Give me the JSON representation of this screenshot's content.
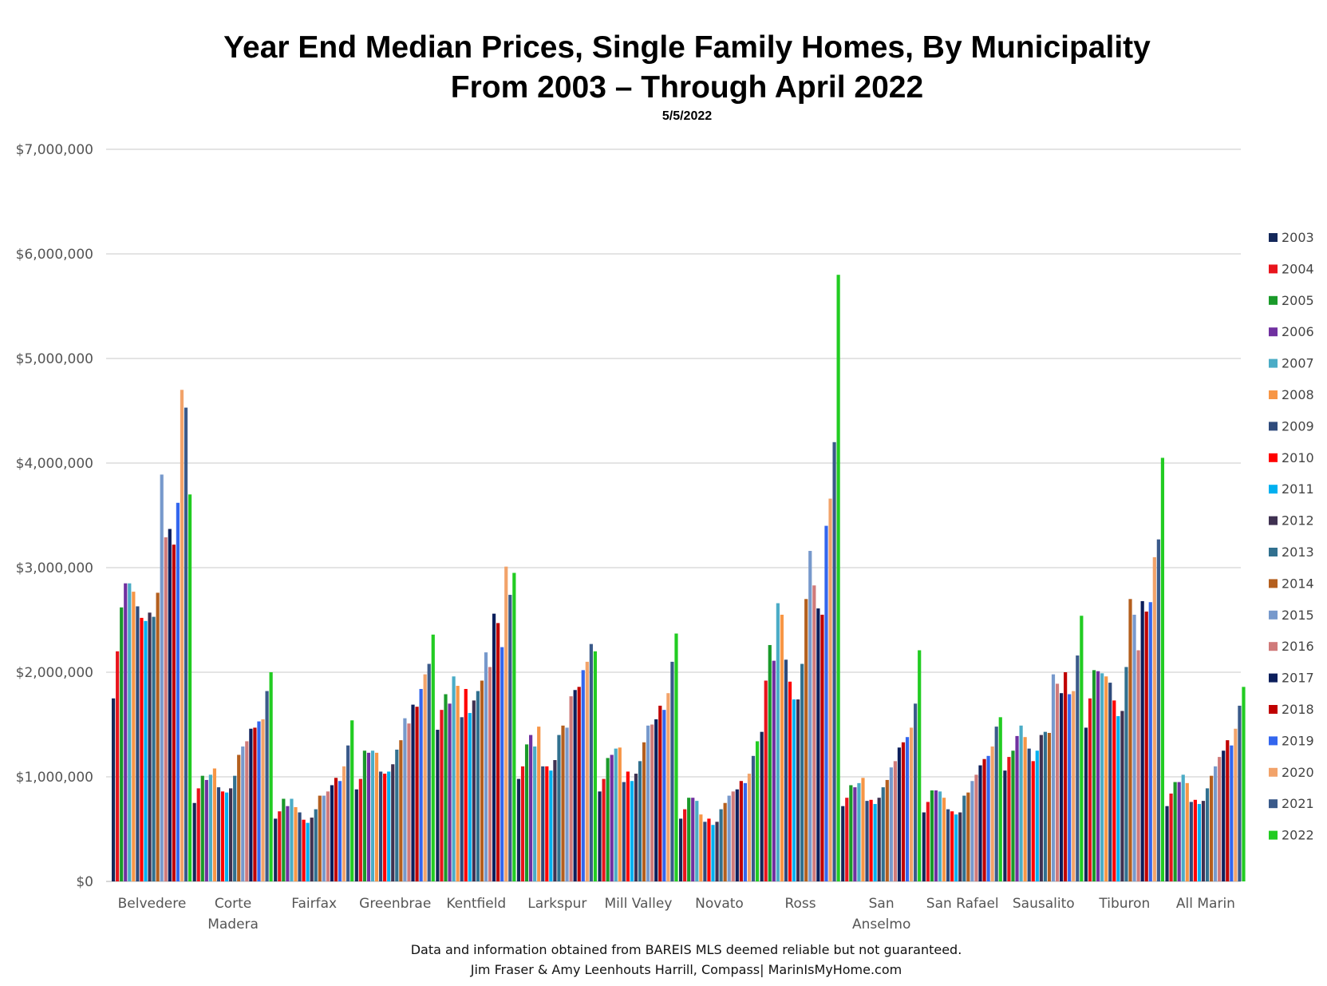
{
  "chart_data": {
    "type": "bar",
    "title": "Year End Median Prices, Single Family Homes, By Municipality",
    "title_line2": "From 2003 – Through April 2022",
    "subtitle": "5/5/2022",
    "ylim": [
      0,
      7000000
    ],
    "yticks": [
      "$0",
      "$1,000,000",
      "$2,000,000",
      "$3,000,000",
      "$4,000,000",
      "$5,000,000",
      "$6,000,000",
      "$7,000,000"
    ],
    "grid": true,
    "legend_position": "right",
    "categories": [
      [
        "Belvedere"
      ],
      [
        "Corte",
        "Madera"
      ],
      [
        "Fairfax"
      ],
      [
        "Greenbrae"
      ],
      [
        "Kentfield"
      ],
      [
        "Larkspur"
      ],
      [
        "Mill Valley"
      ],
      [
        "Novato"
      ],
      [
        "Ross"
      ],
      [
        "San",
        "Anselmo"
      ],
      [
        "San Rafael"
      ],
      [
        "Sausalito"
      ],
      [
        "Tiburon"
      ],
      [
        "All Marin"
      ]
    ],
    "series": [
      {
        "name": "2003",
        "color": "#14285a",
        "values": [
          1750000,
          750000,
          600000,
          880000,
          1450000,
          980000,
          860000,
          600000,
          1430000,
          720000,
          660000,
          1060000,
          1470000,
          720000
        ]
      },
      {
        "name": "2004",
        "color": "#e8141c",
        "values": [
          2200000,
          890000,
          670000,
          980000,
          1640000,
          1100000,
          980000,
          690000,
          1920000,
          800000,
          760000,
          1190000,
          1750000,
          840000
        ]
      },
      {
        "name": "2005",
        "color": "#1a9a2a",
        "values": [
          2620000,
          1010000,
          790000,
          1250000,
          1790000,
          1310000,
          1180000,
          800000,
          2260000,
          920000,
          870000,
          1250000,
          2020000,
          950000
        ]
      },
      {
        "name": "2006",
        "color": "#7030a0",
        "values": [
          2850000,
          970000,
          720000,
          1230000,
          1700000,
          1400000,
          1210000,
          800000,
          2110000,
          900000,
          870000,
          1390000,
          2010000,
          950000
        ]
      },
      {
        "name": "2007",
        "color": "#4bacc6",
        "values": [
          2850000,
          1020000,
          790000,
          1250000,
          1960000,
          1290000,
          1270000,
          770000,
          2660000,
          940000,
          860000,
          1490000,
          1990000,
          1020000
        ]
      },
      {
        "name": "2008",
        "color": "#f79646",
        "values": [
          2770000,
          1080000,
          710000,
          1230000,
          1870000,
          1480000,
          1280000,
          640000,
          2550000,
          990000,
          800000,
          1380000,
          1960000,
          940000
        ]
      },
      {
        "name": "2009",
        "color": "#2f4b7c",
        "values": [
          2630000,
          900000,
          660000,
          1050000,
          1570000,
          1100000,
          950000,
          570000,
          2120000,
          770000,
          690000,
          1270000,
          1900000,
          760000
        ]
      },
      {
        "name": "2010",
        "color": "#ff0000",
        "values": [
          2520000,
          860000,
          590000,
          1030000,
          1840000,
          1100000,
          1050000,
          600000,
          1910000,
          780000,
          670000,
          1150000,
          1730000,
          780000
        ]
      },
      {
        "name": "2011",
        "color": "#00b0f0",
        "values": [
          2490000,
          850000,
          560000,
          1050000,
          1610000,
          1060000,
          960000,
          540000,
          1740000,
          740000,
          640000,
          1250000,
          1580000,
          740000
        ]
      },
      {
        "name": "2012",
        "color": "#3f3151",
        "values": [
          2570000,
          890000,
          610000,
          1120000,
          1730000,
          1160000,
          1030000,
          570000,
          1740000,
          800000,
          660000,
          1400000,
          1630000,
          770000
        ]
      },
      {
        "name": "2013",
        "color": "#31708f",
        "values": [
          2530000,
          1010000,
          690000,
          1260000,
          1820000,
          1400000,
          1150000,
          690000,
          2080000,
          900000,
          820000,
          1430000,
          2050000,
          890000
        ]
      },
      {
        "name": "2014",
        "color": "#b45f1e",
        "values": [
          2760000,
          1210000,
          820000,
          1350000,
          1920000,
          1490000,
          1330000,
          750000,
          2700000,
          970000,
          850000,
          1420000,
          2700000,
          1010000
        ]
      },
      {
        "name": "2015",
        "color": "#7799cc",
        "values": [
          3890000,
          1290000,
          820000,
          1560000,
          2190000,
          1470000,
          1490000,
          820000,
          3160000,
          1090000,
          960000,
          1980000,
          2550000,
          1100000
        ]
      },
      {
        "name": "2016",
        "color": "#d07a7a",
        "values": [
          3290000,
          1340000,
          860000,
          1510000,
          2050000,
          1770000,
          1500000,
          860000,
          2830000,
          1150000,
          1020000,
          1890000,
          2210000,
          1190000
        ]
      },
      {
        "name": "2017",
        "color": "#0c1f5c",
        "values": [
          3370000,
          1460000,
          920000,
          1690000,
          2560000,
          1830000,
          1550000,
          880000,
          2610000,
          1280000,
          1110000,
          1800000,
          2680000,
          1250000
        ]
      },
      {
        "name": "2018",
        "color": "#c00000",
        "values": [
          3220000,
          1470000,
          990000,
          1670000,
          2470000,
          1860000,
          1680000,
          960000,
          2550000,
          1330000,
          1170000,
          2000000,
          2580000,
          1350000
        ]
      },
      {
        "name": "2019",
        "color": "#3366ee",
        "values": [
          3620000,
          1530000,
          960000,
          1840000,
          2240000,
          2020000,
          1640000,
          940000,
          3400000,
          1380000,
          1200000,
          1790000,
          2670000,
          1300000
        ]
      },
      {
        "name": "2020",
        "color": "#f2a36a",
        "values": [
          4700000,
          1550000,
          1100000,
          1980000,
          3010000,
          2100000,
          1800000,
          1030000,
          3660000,
          1470000,
          1290000,
          1820000,
          3100000,
          1460000
        ]
      },
      {
        "name": "2021",
        "color": "#3a5a8a",
        "values": [
          4530000,
          1820000,
          1300000,
          2080000,
          2740000,
          2270000,
          2100000,
          1200000,
          4200000,
          1700000,
          1480000,
          2160000,
          3270000,
          1680000
        ]
      },
      {
        "name": "2022",
        "color": "#22cc22",
        "values": [
          3700000,
          2000000,
          1540000,
          2360000,
          2950000,
          2200000,
          2370000,
          1340000,
          5800000,
          2210000,
          1570000,
          2540000,
          4050000,
          1860000
        ]
      }
    ]
  },
  "footer": {
    "line1": "Data and information obtained from BAREIS MLS deemed reliable but not guaranteed.",
    "line2": "Jim Fraser & Amy Leenhouts Harrill, Compass| MarinIsMyHome.com"
  }
}
